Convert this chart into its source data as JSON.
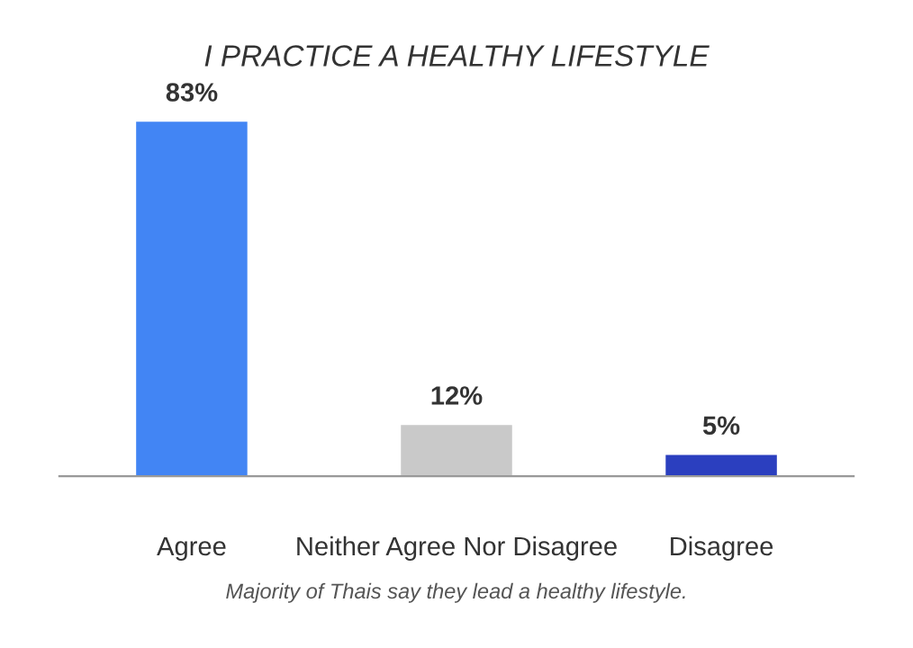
{
  "chart_data": {
    "type": "bar",
    "title": "I PRACTICE A HEALTHY LIFESTYLE",
    "categories": [
      "Agree",
      "Neither Agree Nor Disagree",
      "Disagree"
    ],
    "values": [
      83,
      12,
      5
    ],
    "colors": [
      "#4285f4",
      "#c9c9c9",
      "#2b3fbf"
    ],
    "value_labels": [
      "83%",
      "12%",
      "5%"
    ],
    "annotations": [
      "Majority of Thais say they lead a healthy lifestyle."
    ]
  }
}
